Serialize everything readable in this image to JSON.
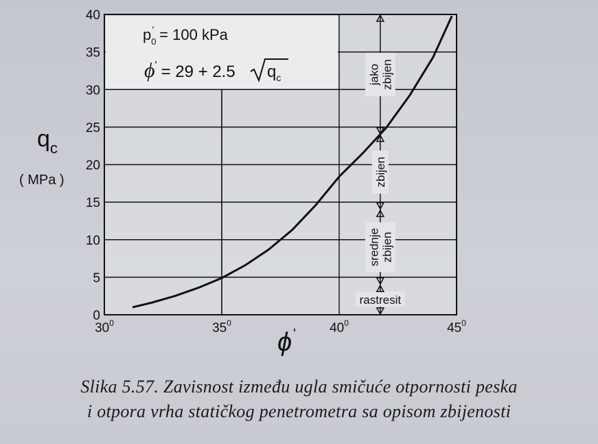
{
  "chart_data": {
    "type": "line",
    "xlabel": "ϕ",
    "xlabel_prime": "'",
    "ylabel": "q",
    "ylabel_sub": "c",
    "yunit": "( MPa )",
    "xlim": [
      30,
      45
    ],
    "ylim": [
      0,
      40
    ],
    "x_ticks": [
      {
        "value": 30,
        "label": "30",
        "sup": "0"
      },
      {
        "value": 35,
        "label": "35",
        "sup": "0"
      },
      {
        "value": 40,
        "label": "40",
        "sup": "0"
      },
      {
        "value": 45,
        "label": "45",
        "sup": "0"
      }
    ],
    "y_ticks": [
      0,
      5,
      10,
      15,
      20,
      25,
      30,
      35,
      40
    ],
    "grid": true,
    "series": [
      {
        "x": [
          31.2,
          32,
          33,
          34,
          35,
          36,
          37,
          38,
          39,
          40,
          41,
          42,
          43,
          44,
          44.8
        ],
        "y": [
          1.0,
          1.6,
          2.5,
          3.6,
          4.9,
          6.6,
          8.7,
          11.3,
          14.6,
          18.4,
          21.5,
          24.9,
          29.2,
          34.3,
          39.8
        ]
      }
    ],
    "annotations": {
      "line1_prefix": "p",
      "line1_sub": "0",
      "line1_prime": "'",
      "line1_rest": "= 100 kPa",
      "line2_phi": "ϕ",
      "line2_prime": "'",
      "line2_rest": "= 29 + 2.5",
      "line2_radicand": "q",
      "line2_radicand_sub": "c"
    },
    "zones": [
      {
        "lines": [
          "rastresit"
        ],
        "y_from": 0,
        "y_to": 4
      },
      {
        "lines": [
          "srednje",
          "zbijen"
        ],
        "y_from": 4,
        "y_to": 14
      },
      {
        "lines": [
          "zbijen"
        ],
        "y_from": 14,
        "y_to": 24
      },
      {
        "lines": [
          "jako",
          "zbijen"
        ],
        "y_from": 24,
        "y_to": 40
      }
    ]
  },
  "caption": {
    "line1": "Slika 5.57. Zavisnost između ugla smičuće otpornosti peska",
    "line2": "i otpora vrha statičkog penetrometra sa opisom zbijenosti"
  }
}
